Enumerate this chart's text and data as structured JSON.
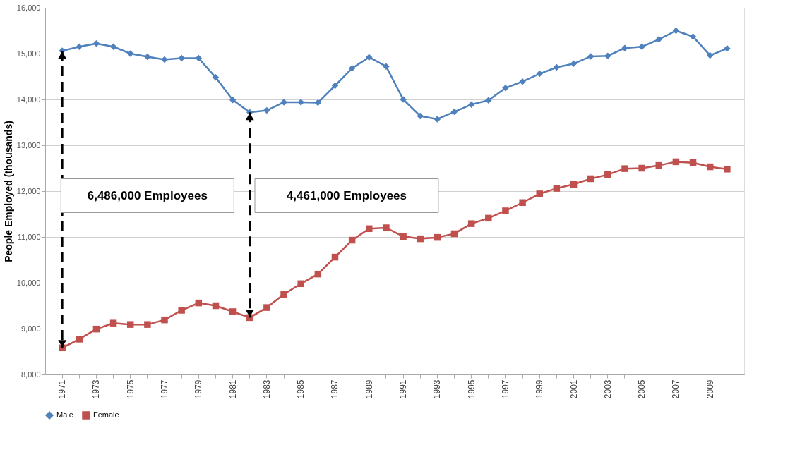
{
  "chart_data": {
    "type": "line",
    "ylabel": "People Employed (thousands)",
    "categories": [
      "1971",
      null,
      "1973",
      null,
      "1975",
      null,
      "1977",
      null,
      "1979",
      null,
      "1981",
      null,
      "1983",
      null,
      "1985",
      null,
      "1987",
      null,
      "1989",
      null,
      "1991",
      null,
      "1993",
      null,
      "1995",
      null,
      "1997",
      null,
      "1999",
      null,
      "2001",
      null,
      "2003",
      null,
      "2005",
      null,
      "2007",
      null,
      "2009",
      null
    ],
    "series": [
      {
        "name": "Male",
        "color": "#4f81bd",
        "marker": "diamond",
        "values": [
          15060,
          15150,
          15220,
          15150,
          15000,
          14930,
          14870,
          14900,
          14900,
          14480,
          13990,
          13720,
          13760,
          13940,
          13940,
          13930,
          14300,
          14680,
          14920,
          14720,
          14000,
          13640,
          13570,
          13730,
          13890,
          13980,
          14250,
          14390,
          14560,
          14700,
          14780,
          14940,
          14950,
          15120,
          15150,
          15310,
          15500,
          15370,
          14960,
          15110
        ]
      },
      {
        "name": "Female",
        "color": "#c0504d",
        "marker": "square",
        "values": [
          8580,
          8770,
          8990,
          9120,
          9090,
          9090,
          9190,
          9400,
          9560,
          9500,
          9370,
          9240,
          9460,
          9750,
          9980,
          10190,
          10560,
          10930,
          11180,
          11200,
          11010,
          10960,
          10990,
          11070,
          11290,
          11410,
          11570,
          11750,
          11940,
          12060,
          12150,
          12270,
          12360,
          12490,
          12500,
          12560,
          12640,
          12620,
          12530,
          12480
        ]
      }
    ],
    "ylim": [
      8000,
      16000
    ],
    "yticks": [
      {
        "value": 8000,
        "label": "8,000"
      },
      {
        "value": 9000,
        "label": "9,000"
      },
      {
        "value": 10000,
        "label": "10,000"
      },
      {
        "value": 11000,
        "label": "11,000"
      },
      {
        "value": 12000,
        "label": "12,000"
      },
      {
        "value": 13000,
        "label": "13,000"
      },
      {
        "value": 14000,
        "label": "14,000"
      },
      {
        "value": 15000,
        "label": "15,000"
      },
      {
        "value": 16000,
        "label": "16,000"
      }
    ],
    "grid": "y",
    "legend": "bottom",
    "annotations": [
      "6,486,000 Employees",
      "4,461,000 Employees"
    ]
  }
}
